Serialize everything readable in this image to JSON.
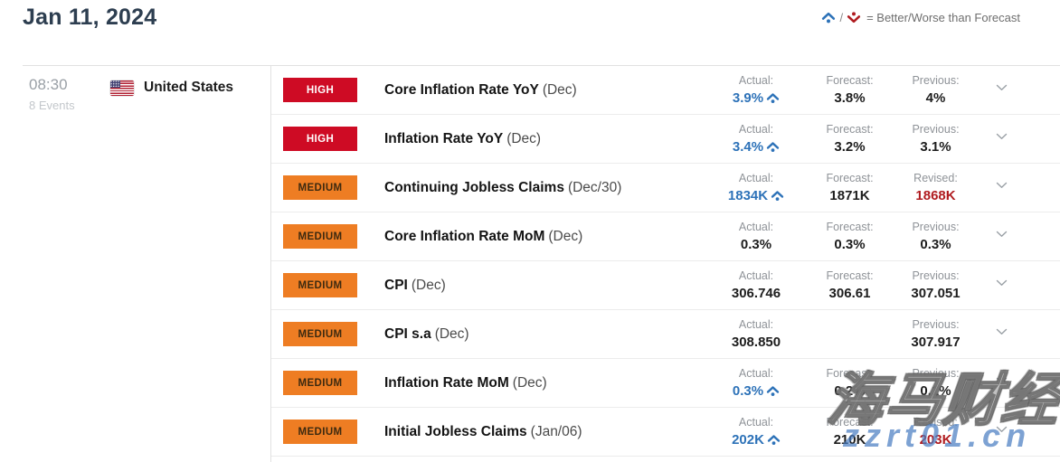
{
  "header": {
    "date_title": "Jan 11, 2024",
    "legend": {
      "better_icon": "up-chevron-dot",
      "worse_icon": "down-chevron-dot",
      "separator": "/",
      "label": "= Better/Worse than Forecast"
    }
  },
  "session": {
    "time": "08:30",
    "events_count": "8 Events",
    "country": "United States",
    "flag_icon": "us-flag"
  },
  "colors": {
    "title": "#2d3e50",
    "high_badge": "#ce0b24",
    "medium_badge": "#ee7d23",
    "actual_better_blue": "#2d72b8",
    "revised_red": "#b01c20",
    "label_gray": "#8f9398",
    "value_black": "#1d1d1d"
  },
  "table": {
    "expand_icon": "chevron-down",
    "rows": [
      {
        "importance": "high",
        "importance_label": "HIGH",
        "name": "Core Inflation Rate YoY",
        "period": "(Dec)",
        "cells": [
          {
            "type": "actual",
            "label": "Actual:",
            "value": "3.9%",
            "emphasis": "better",
            "icon": "better"
          },
          {
            "type": "forecast",
            "label": "Forecast:",
            "value": "3.8%",
            "emphasis": "normal"
          },
          {
            "type": "previous",
            "label": "Previous:",
            "value": "4%",
            "emphasis": "normal"
          }
        ]
      },
      {
        "importance": "high",
        "importance_label": "HIGH",
        "name": "Inflation Rate YoY",
        "period": "(Dec)",
        "cells": [
          {
            "type": "actual",
            "label": "Actual:",
            "value": "3.4%",
            "emphasis": "better",
            "icon": "better"
          },
          {
            "type": "forecast",
            "label": "Forecast:",
            "value": "3.2%",
            "emphasis": "normal"
          },
          {
            "type": "previous",
            "label": "Previous:",
            "value": "3.1%",
            "emphasis": "normal"
          }
        ]
      },
      {
        "importance": "medium",
        "importance_label": "MEDIUM",
        "name": "Continuing Jobless Claims",
        "period": "(Dec/30)",
        "cells": [
          {
            "type": "actual",
            "label": "Actual:",
            "value": "1834K",
            "emphasis": "better",
            "icon": "better"
          },
          {
            "type": "forecast",
            "label": "Forecast:",
            "value": "1871K",
            "emphasis": "normal"
          },
          {
            "type": "previous",
            "label": "Revised:",
            "value": "1868K",
            "emphasis": "revised"
          }
        ]
      },
      {
        "importance": "medium",
        "importance_label": "MEDIUM",
        "name": "Core Inflation Rate MoM",
        "period": "(Dec)",
        "cells": [
          {
            "type": "actual",
            "label": "Actual:",
            "value": "0.3%",
            "emphasis": "normal"
          },
          {
            "type": "forecast",
            "label": "Forecast:",
            "value": "0.3%",
            "emphasis": "normal"
          },
          {
            "type": "previous",
            "label": "Previous:",
            "value": "0.3%",
            "emphasis": "normal"
          }
        ]
      },
      {
        "importance": "medium",
        "importance_label": "MEDIUM",
        "name": "CPI",
        "period": "(Dec)",
        "cells": [
          {
            "type": "actual",
            "label": "Actual:",
            "value": "306.746",
            "emphasis": "normal"
          },
          {
            "type": "forecast",
            "label": "Forecast:",
            "value": "306.61",
            "emphasis": "normal"
          },
          {
            "type": "previous",
            "label": "Previous:",
            "value": "307.051",
            "emphasis": "normal"
          }
        ]
      },
      {
        "importance": "medium",
        "importance_label": "MEDIUM",
        "name": "CPI s.a",
        "period": "(Dec)",
        "cells": [
          {
            "type": "actual",
            "label": "Actual:",
            "value": "308.850",
            "emphasis": "normal"
          },
          {
            "type": "forecast",
            "label": "",
            "value": "",
            "emphasis": "normal"
          },
          {
            "type": "previous",
            "label": "Previous:",
            "value": "307.917",
            "emphasis": "normal"
          }
        ]
      },
      {
        "importance": "medium",
        "importance_label": "MEDIUM",
        "name": "Inflation Rate MoM",
        "period": "(Dec)",
        "cells": [
          {
            "type": "actual",
            "label": "Actual:",
            "value": "0.3%",
            "emphasis": "better",
            "icon": "better"
          },
          {
            "type": "forecast",
            "label": "Forecast:",
            "value": "0.2%",
            "emphasis": "normal"
          },
          {
            "type": "previous",
            "label": "Previous:",
            "value": "0.1%",
            "emphasis": "normal"
          }
        ]
      },
      {
        "importance": "medium",
        "importance_label": "MEDIUM",
        "name": "Initial Jobless Claims",
        "period": "(Jan/06)",
        "cells": [
          {
            "type": "actual",
            "label": "Actual:",
            "value": "202K",
            "emphasis": "better",
            "icon": "better"
          },
          {
            "type": "forecast",
            "label": "Forecast:",
            "value": "210K",
            "emphasis": "normal"
          },
          {
            "type": "previous",
            "label": "Revised:",
            "value": "203K",
            "emphasis": "revised"
          }
        ]
      }
    ]
  },
  "watermark": {
    "cjk_text": "海马财经",
    "domain_text": "zzrt01.cn"
  }
}
